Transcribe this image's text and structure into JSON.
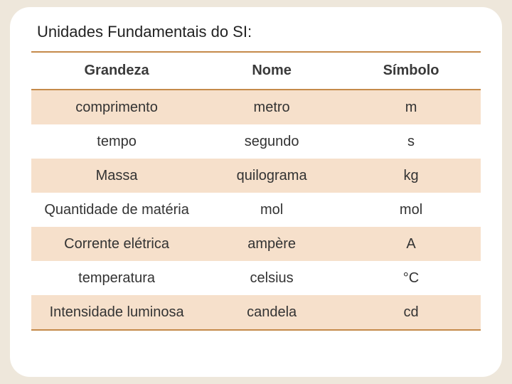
{
  "title": "Unidades Fundamentais do SI:",
  "table": {
    "background": "#ffffff",
    "band_color": "#f6e0cb",
    "border_color": "#c58a4a",
    "header_fontsize": 20,
    "cell_fontsize": 20,
    "columns": [
      "Grandeza",
      "Nome",
      "Símbolo"
    ],
    "rows": [
      {
        "band": true,
        "cells": [
          "comprimento",
          "metro",
          "m"
        ]
      },
      {
        "band": false,
        "cells": [
          "tempo",
          "segundo",
          "s"
        ]
      },
      {
        "band": true,
        "cells": [
          "Massa",
          "quilograma",
          "kg"
        ]
      },
      {
        "band": false,
        "cells": [
          "Quantidade de matéria",
          "mol",
          "mol"
        ]
      },
      {
        "band": true,
        "cells": [
          "Corrente elétrica",
          "ampère",
          "A"
        ]
      },
      {
        "band": false,
        "cells": [
          "temperatura",
          "celsius",
          "°C"
        ]
      },
      {
        "band": true,
        "cells": [
          "Intensidade luminosa",
          "candela",
          "cd"
        ]
      }
    ]
  }
}
